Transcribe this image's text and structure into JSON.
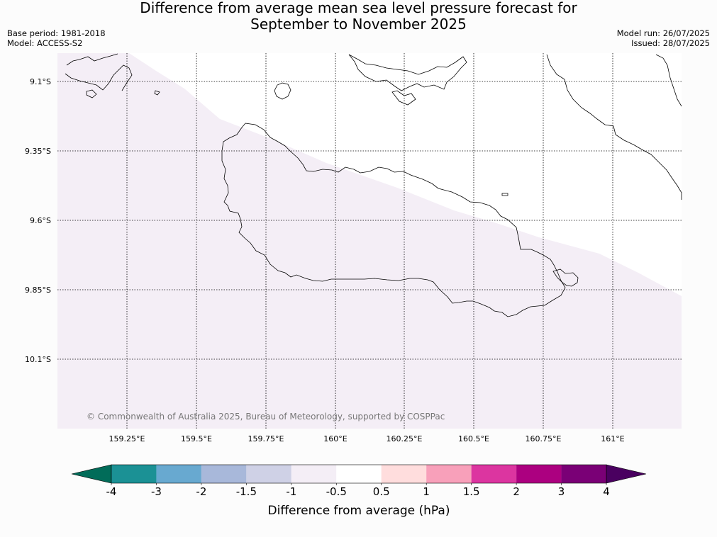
{
  "title": {
    "line1": "Difference from average mean sea level pressure forecast for",
    "line2": "September to November 2025"
  },
  "meta": {
    "base_period": "Base period: 1981-2018",
    "model": "Model: ACCESS-S2",
    "model_run": "Model run: 26/07/2025",
    "issued": "Issued: 28/07/2025"
  },
  "map": {
    "lat_labels": [
      "9.1°S",
      "9.35°S",
      "9.6°S",
      "9.85°S",
      "10.1°S"
    ],
    "lon_labels": [
      "159.25°E",
      "159.5°E",
      "159.75°E",
      "160°E",
      "160.25°E",
      "160.5°E",
      "160.75°E",
      "161°E"
    ],
    "copyright": "© Commonwealth of Australia 2025, Bureau of Meteorology, supported by COSPPac",
    "anomaly_fill_color": "#f4eef6",
    "anomaly_category": "-1 to -0.5 hPa (south-west), -0.5 to 0.5 hPa (north-east)"
  },
  "colorbar": {
    "label": "Difference from average (hPa)",
    "ticks": [
      "-4",
      "-3",
      "-2",
      "-1.5",
      "-1",
      "-0.5",
      "0.5",
      "1",
      "1.5",
      "2",
      "3",
      "4"
    ],
    "colors": [
      "#1b9195",
      "#68a9d0",
      "#a8b8da",
      "#cfd1e6",
      "#f4eef6",
      "#ffffff",
      "#ffdddd",
      "#f8a0ba",
      "#dc35a0",
      "#ac0080",
      "#7a0076"
    ],
    "under_color": "#016c59",
    "over_color": "#4a0060"
  }
}
